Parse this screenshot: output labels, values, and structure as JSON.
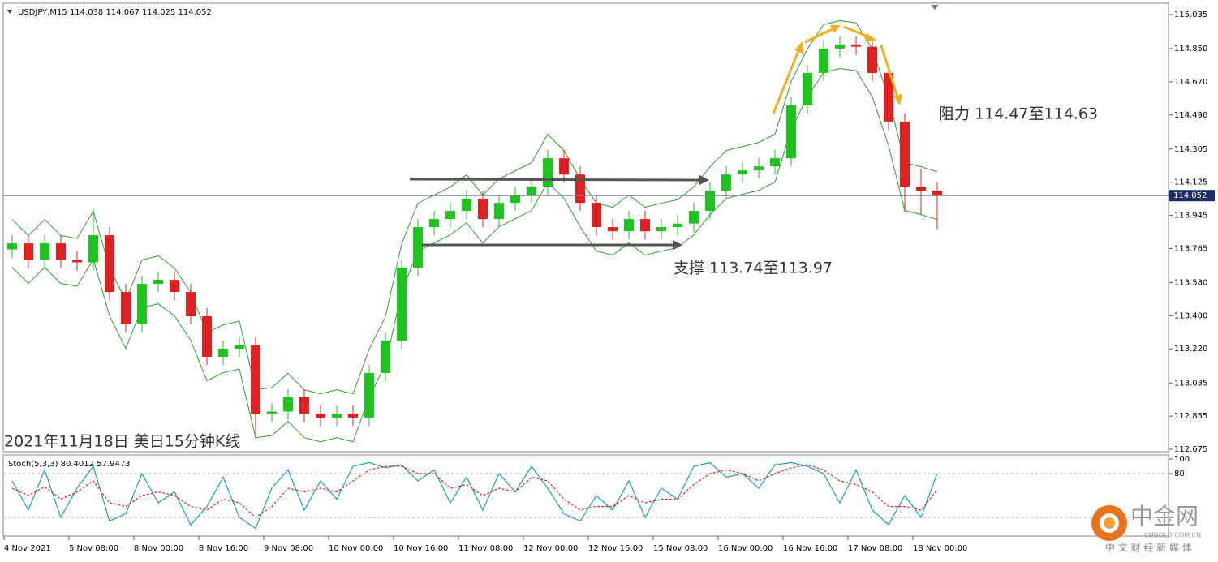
{
  "chart_data": [
    {
      "type": "candlestick",
      "title": "USDJPY,M15  114.038 114.067 114.025 114.052",
      "categories": [
        "4 Nov 2021",
        null,
        null,
        null,
        "5 Nov 08:00",
        null,
        null,
        null,
        "8 Nov 00:00",
        null,
        null,
        null,
        "8 Nov 16:00",
        null,
        null,
        null,
        "9 Nov 08:00",
        null,
        null,
        null,
        "10 Nov 00:00",
        null,
        null,
        null,
        "10 Nov 16:00",
        null,
        null,
        null,
        "11 Nov 08:00",
        null,
        null,
        null,
        "12 Nov 00:00",
        null,
        null,
        null,
        "12 Nov 16:00",
        null,
        null,
        null,
        "15 Nov 08:00",
        null,
        null,
        null,
        "16 Nov 00:00",
        null,
        null,
        null,
        "16 Nov 16:00",
        null,
        null,
        null,
        "17 Nov 08:00",
        null,
        null,
        null,
        "18 Nov 00:00",
        null
      ],
      "open": [
        113.76,
        113.793,
        113.705,
        113.793,
        113.705,
        113.69,
        113.837,
        113.529,
        113.353,
        113.573,
        113.595,
        113.529,
        113.397,
        113.177,
        113.221,
        113.24,
        112.868,
        112.88,
        112.957,
        112.868,
        112.846,
        112.868,
        112.846,
        113.089,
        113.265,
        113.661,
        113.881,
        113.925,
        113.969,
        114.035,
        113.925,
        114.013,
        114.057,
        114.101,
        114.255,
        114.167,
        114.013,
        113.881,
        113.859,
        113.925,
        113.859,
        113.881,
        113.9,
        113.969,
        114.079,
        114.167,
        114.189,
        114.211,
        114.255,
        114.542,
        114.718,
        114.85,
        114.872,
        114.86,
        114.718,
        114.454,
        114.101,
        114.079
      ],
      "high": [
        113.838,
        113.838,
        113.838,
        113.838,
        113.75,
        113.98,
        113.882,
        113.574,
        113.618,
        113.64,
        113.64,
        113.574,
        113.442,
        113.266,
        113.285,
        113.285,
        112.925,
        113.002,
        113.002,
        112.913,
        112.913,
        112.913,
        113.134,
        113.31,
        113.706,
        113.926,
        113.97,
        114.014,
        114.08,
        114.08,
        114.058,
        114.102,
        114.146,
        114.3,
        114.3,
        114.212,
        114.058,
        113.926,
        113.97,
        113.97,
        113.926,
        113.945,
        114.014,
        114.124,
        114.212,
        114.234,
        114.256,
        114.3,
        114.587,
        114.763,
        114.895,
        114.917,
        114.917,
        114.905,
        114.763,
        114.499,
        114.2,
        114.124
      ],
      "low": [
        113.715,
        113.66,
        113.66,
        113.66,
        113.645,
        113.645,
        113.484,
        113.308,
        113.308,
        113.528,
        113.484,
        113.352,
        113.132,
        113.132,
        113.176,
        112.76,
        112.823,
        112.835,
        112.823,
        112.801,
        112.801,
        112.801,
        112.801,
        113.044,
        113.22,
        113.616,
        113.836,
        113.88,
        113.924,
        113.88,
        113.88,
        113.968,
        114.012,
        114.056,
        114.122,
        113.968,
        113.836,
        113.814,
        113.814,
        113.814,
        113.814,
        113.836,
        113.855,
        113.924,
        114.034,
        114.122,
        114.144,
        114.166,
        114.21,
        114.497,
        114.673,
        114.805,
        114.815,
        114.673,
        114.409,
        113.96,
        113.95,
        113.868
      ],
      "close": [
        113.793,
        113.705,
        113.793,
        113.705,
        113.69,
        113.837,
        113.529,
        113.353,
        113.573,
        113.595,
        113.529,
        113.397,
        113.177,
        113.221,
        113.24,
        112.868,
        112.88,
        112.957,
        112.868,
        112.846,
        112.868,
        112.846,
        113.089,
        113.265,
        113.661,
        113.881,
        113.925,
        113.969,
        114.035,
        113.925,
        114.013,
        114.057,
        114.101,
        114.255,
        114.167,
        114.013,
        113.881,
        113.859,
        113.925,
        113.859,
        113.881,
        113.9,
        113.969,
        114.079,
        114.167,
        114.189,
        114.211,
        114.255,
        114.542,
        114.718,
        114.85,
        114.872,
        114.86,
        114.718,
        114.454,
        114.101,
        114.079,
        114.052
      ],
      "upper_band": [
        113.923,
        113.835,
        113.923,
        113.835,
        113.82,
        113.967,
        113.659,
        113.483,
        113.703,
        113.725,
        113.659,
        113.527,
        113.307,
        113.351,
        113.37,
        112.998,
        113.01,
        113.087,
        112.998,
        112.976,
        112.998,
        112.976,
        113.219,
        113.395,
        113.791,
        114.011,
        114.055,
        114.099,
        114.165,
        114.055,
        114.143,
        114.187,
        114.231,
        114.385,
        114.297,
        114.143,
        114.011,
        113.989,
        114.055,
        113.989,
        114.011,
        114.03,
        114.099,
        114.209,
        114.297,
        114.319,
        114.341,
        114.385,
        114.672,
        114.848,
        114.98,
        115.002,
        114.99,
        114.848,
        114.584,
        114.231,
        114.209,
        114.182
      ],
      "lower_band": [
        113.663,
        113.575,
        113.663,
        113.575,
        113.56,
        113.707,
        113.399,
        113.223,
        113.443,
        113.465,
        113.399,
        113.267,
        113.047,
        113.091,
        113.11,
        112.738,
        112.75,
        112.827,
        112.738,
        112.716,
        112.738,
        112.716,
        112.959,
        113.135,
        113.531,
        113.751,
        113.795,
        113.839,
        113.905,
        113.795,
        113.883,
        113.927,
        113.971,
        114.125,
        114.037,
        113.883,
        113.751,
        113.729,
        113.795,
        113.729,
        113.751,
        113.77,
        113.839,
        113.949,
        114.037,
        114.059,
        114.081,
        114.125,
        114.412,
        114.588,
        114.72,
        114.742,
        114.73,
        114.588,
        114.324,
        113.971,
        113.949,
        113.922
      ],
      "up_color": "#1fc31f",
      "down_color": "#e02020",
      "band_color": "#2e9e2e",
      "last_price": 114.052,
      "ylim": [
        112.662,
        115.092
      ],
      "yticks": [
        115.035,
        {
          "value": 114.85,
          "label": "114.850"
        },
        {
          "value": 114.67,
          "label": "114.670"
        },
        {
          "value": 114.49,
          "label": "114.490"
        },
        114.305,
        114.125,
        113.945,
        113.765,
        {
          "value": 113.58,
          "label": "113.580"
        },
        {
          "value": 113.4,
          "label": "113.400"
        },
        {
          "value": 113.22,
          "label": "113.220"
        },
        113.035,
        112.855,
        112.675
      ],
      "annotations": [
        "阻力 114.47至114.63",
        "支撑 113.74至113.97",
        "2021年11月18日 美日15分钟K线"
      ]
    },
    {
      "type": "line",
      "title": "Stoch(5,3,3) 80.4012 57.9473",
      "series": [
        {
          "color": "#1aa0b0",
          "values": [
            70,
            30,
            85,
            20,
            60,
            90,
            15,
            25,
            80,
            40,
            55,
            10,
            35,
            75,
            20,
            5,
            60,
            85,
            30,
            70,
            45,
            90,
            95,
            88,
            92,
            70,
            85,
            40,
            75,
            30,
            80,
            55,
            90,
            60,
            25,
            15,
            50,
            30,
            70,
            20,
            60,
            45,
            90,
            95,
            75,
            80,
            60,
            92,
            95,
            90,
            80,
            40,
            85,
            30,
            10,
            50,
            20,
            80.4012
          ]
        },
        {
          "color": "#e02020",
          "values": [
            60,
            50,
            62,
            45,
            55,
            70,
            40,
            35,
            50,
            55,
            50,
            35,
            30,
            45,
            40,
            20,
            35,
            60,
            55,
            60,
            55,
            70,
            85,
            90,
            90,
            80,
            80,
            60,
            65,
            50,
            60,
            55,
            75,
            70,
            45,
            30,
            35,
            35,
            50,
            40,
            45,
            45,
            65,
            80,
            85,
            80,
            70,
            80,
            88,
            92,
            85,
            70,
            65,
            55,
            35,
            35,
            30,
            57.9473
          ]
        }
      ],
      "ylim": [
        0,
        100
      ],
      "yticks": [
        100,
        80
      ],
      "levels": [
        80,
        20
      ]
    }
  ],
  "logo": {
    "name": "中金网",
    "url": "CNGOLD.COM.CN",
    "slogan": "中 文 财 经 新 媒 体"
  }
}
